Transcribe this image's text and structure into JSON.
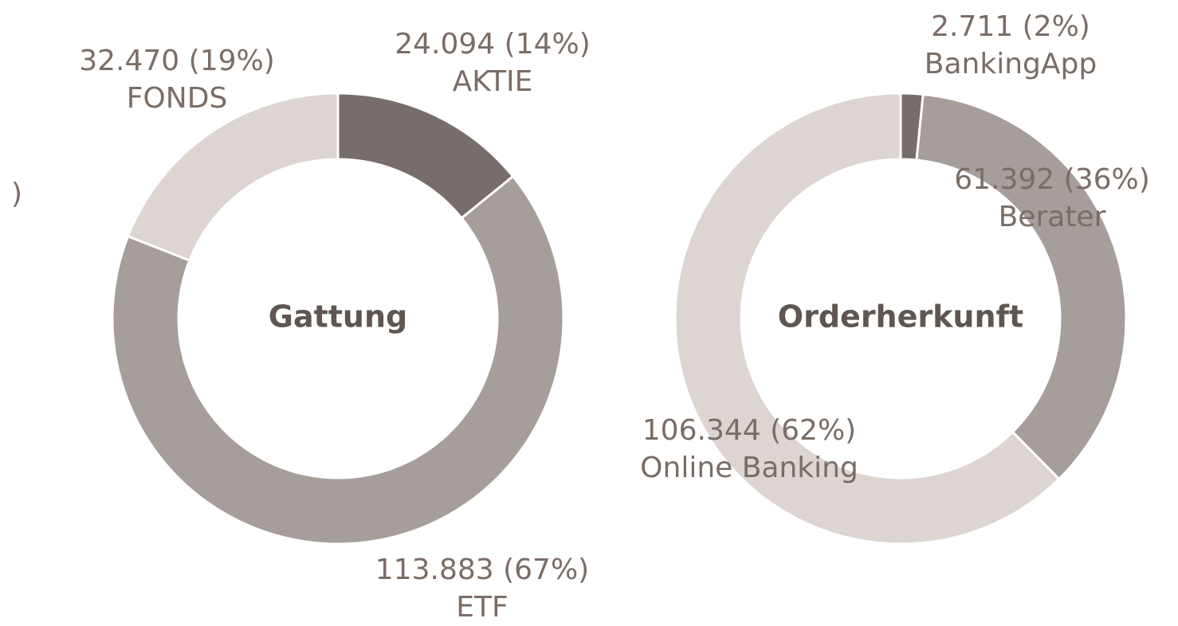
{
  "chart_data": [
    {
      "type": "pie",
      "donut": true,
      "title": "Gattung",
      "categories": [
        "AKTIE",
        "ETF",
        "FONDS"
      ],
      "values": [
        24094,
        113883,
        32470
      ],
      "value_labels": [
        "24.094 (14%)",
        "113.883 (67%)",
        "32.470 (19%)"
      ],
      "colors": [
        "#776e6b",
        "#a59e9b",
        "#dcd5d2"
      ]
    },
    {
      "type": "pie",
      "donut": true,
      "title": "Orderherkunft",
      "categories": [
        "BankingApp",
        "Berater",
        "Online Banking"
      ],
      "values": [
        2711,
        61392,
        106344
      ],
      "value_labels": [
        "2.711 (2%)",
        "61.392 (36%)",
        "106.344 (62%)"
      ],
      "colors": [
        "#776e6b",
        "#a59e9b",
        "#dcd5d2"
      ]
    }
  ],
  "fragment": ")"
}
